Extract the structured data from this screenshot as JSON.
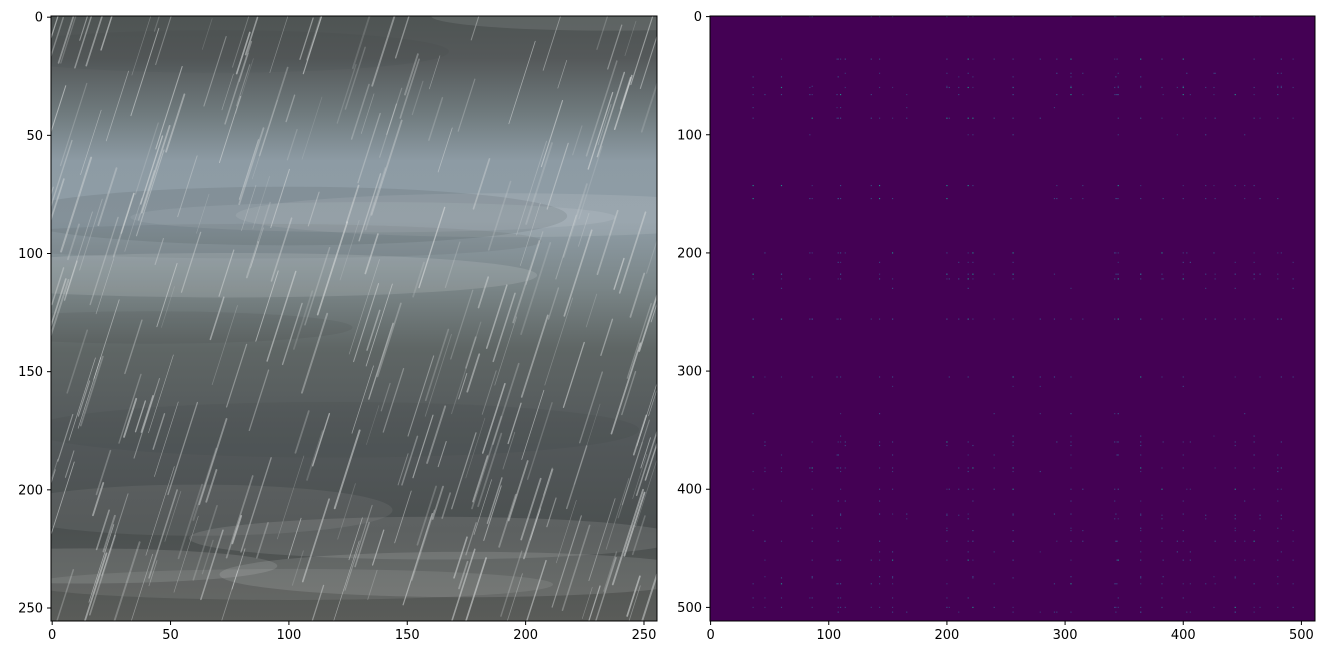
{
  "chart_data": [
    {
      "type": "heatmap",
      "content": "rgb-image",
      "xlim": [
        -0.5,
        255.5
      ],
      "ylim": [
        255.5,
        -0.5
      ],
      "xticks": [
        0,
        50,
        100,
        150,
        200,
        250
      ],
      "yticks": [
        0,
        50,
        100,
        150,
        200,
        250
      ],
      "xtick_labels": [
        "0",
        "50",
        "100",
        "150",
        "200",
        "250"
      ],
      "ytick_labels": [
        "0",
        "50",
        "100",
        "150",
        "200",
        "250"
      ],
      "colors": {
        "sky_light": "#8f9da6",
        "cloud_dark": "#4b5050",
        "ground": "#5a5c59",
        "rain": "#d9dcdc"
      }
    },
    {
      "type": "heatmap",
      "content": "sparse-matrix",
      "colormap": "viridis",
      "xlim": [
        -0.5,
        511.5
      ],
      "ylim": [
        511.5,
        -0.5
      ],
      "xticks": [
        0,
        100,
        200,
        300,
        400,
        500
      ],
      "yticks": [
        0,
        100,
        200,
        300,
        400,
        500
      ],
      "xtick_labels": [
        "0",
        "100",
        "200",
        "300",
        "400",
        "500"
      ],
      "ytick_labels": [
        "0",
        "100",
        "200",
        "300",
        "400",
        "500"
      ],
      "highlight_rows": [
        36,
        60,
        66,
        86,
        143,
        154,
        200,
        218,
        222,
        256,
        305,
        360,
        382,
        400,
        444,
        460,
        480,
        500
      ],
      "highlight_cols": [
        36,
        60,
        86,
        110,
        143,
        154,
        200,
        218,
        222,
        256,
        305,
        345,
        364,
        382,
        400,
        444,
        460,
        480
      ],
      "colors": {
        "background": "#440154",
        "cell": "#3b528b",
        "bright_cell": "#21918c"
      }
    }
  ]
}
